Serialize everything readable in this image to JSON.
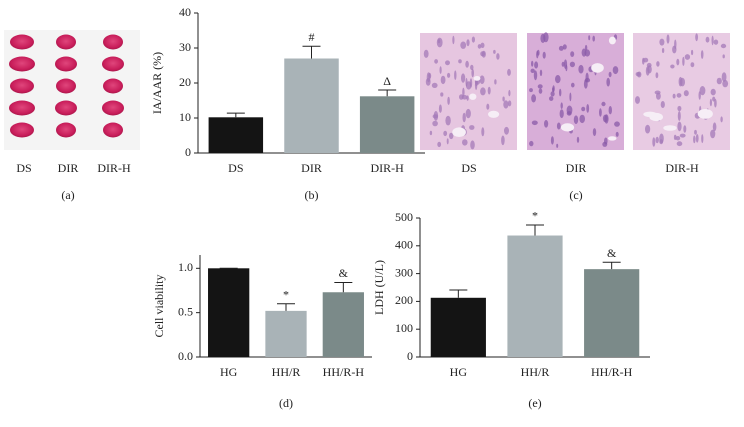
{
  "image_panels": [
    {
      "panel_label": "(a)",
      "captions": [
        "DS",
        "DIR",
        "DIR-H"
      ]
    },
    {
      "panel_label": "(c)",
      "captions": [
        "DS",
        "DIR",
        "DIR-H"
      ]
    }
  ],
  "chart_data": [
    {
      "type": "bar",
      "panel_label": "(b)",
      "y_label": "IA/AAR (%)",
      "categories": [
        "DS",
        "DIR",
        "DIR-H"
      ],
      "values": [
        10.2,
        27,
        16.2
      ],
      "errors": [
        1.2,
        3.5,
        1.8
      ],
      "colors": [
        "#141414",
        "#a9b3b7",
        "#7b8a89"
      ],
      "annotations": [
        null,
        "#",
        "Δ"
      ],
      "ylim": [
        0,
        40
      ],
      "yticks": [
        0,
        10,
        20,
        30,
        40
      ]
    },
    {
      "type": "bar",
      "panel_label": "(d)",
      "y_label": "Cell viability",
      "categories": [
        "HG",
        "HH/R",
        "HH/R-H"
      ],
      "values": [
        1.0,
        0.52,
        0.73
      ],
      "errors": [
        0,
        0.08,
        0.11
      ],
      "colors": [
        "#141414",
        "#a9b3b7",
        "#7b8a89"
      ],
      "annotations": [
        null,
        "*",
        "&"
      ],
      "ylim": [
        0,
        1.15
      ],
      "yticks": [
        {
          "value": 0,
          "label": "0.0"
        },
        0.5,
        {
          "value": 1,
          "label": "1.0"
        }
      ]
    },
    {
      "type": "bar",
      "panel_label": "(e)",
      "y_label": "LDH (U/L)",
      "categories": [
        "HG",
        "HH/R",
        "HH/R-H"
      ],
      "values": [
        213,
        437,
        316
      ],
      "errors": [
        28,
        38,
        25
      ],
      "colors": [
        "#141414",
        "#a9b3b7",
        "#7b8a89"
      ],
      "annotations": [
        null,
        "*",
        "&"
      ],
      "ylim": [
        0,
        500
      ],
      "yticks": [
        0,
        100,
        200,
        300,
        400,
        500
      ]
    }
  ]
}
